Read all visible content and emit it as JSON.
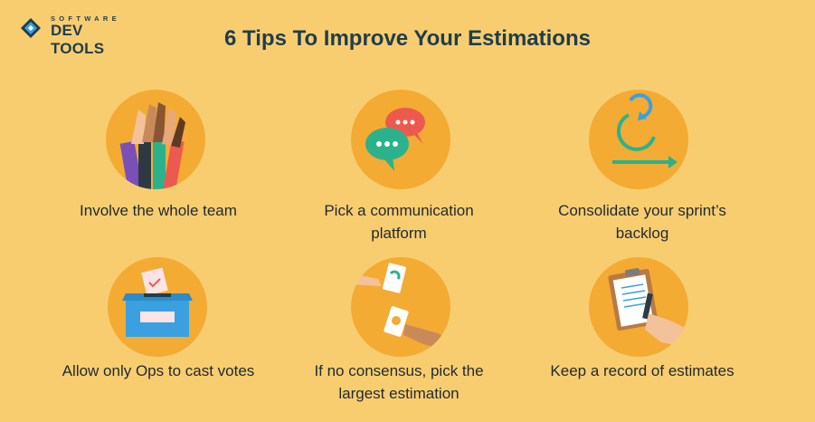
{
  "brand": {
    "top": "SOFTWARE",
    "main": "DEV TOOLS"
  },
  "title": "6 Tips To Improve Your Estimations",
  "tips": [
    {
      "icon": "hands-together-icon",
      "lines": [
        "Involve the whole team"
      ]
    },
    {
      "icon": "chat-bubbles-icon",
      "lines": [
        "Pick a communication",
        "platform"
      ]
    },
    {
      "icon": "sprint-loop-icon",
      "lines": [
        "Consolidate your sprint’s",
        "backlog"
      ]
    },
    {
      "icon": "ballot-box-icon",
      "lines": [
        "Allow only Ops to cast votes"
      ]
    },
    {
      "icon": "exchange-cards-icon",
      "lines": [
        "If no consensus, pick the",
        "largest estimation"
      ]
    },
    {
      "icon": "clipboard-sign-icon",
      "lines": [
        "Keep a record of estimates"
      ]
    }
  ],
  "colors": {
    "background": "#f8cd70",
    "circle": "#f3ab33",
    "title": "#1f3d4c",
    "accent_teal": "#2bb28d",
    "accent_blue": "#3aa0e0",
    "accent_red": "#ec5a4f"
  }
}
